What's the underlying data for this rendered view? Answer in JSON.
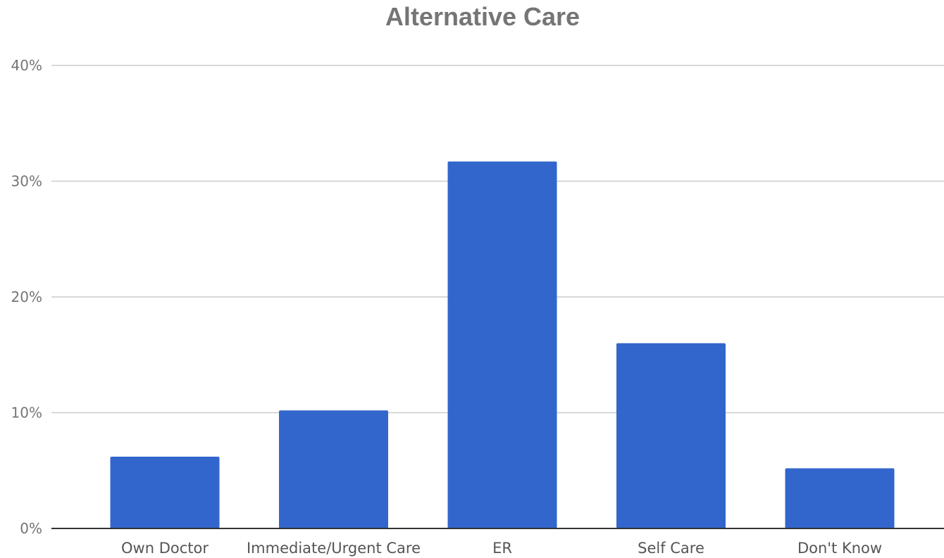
{
  "chart_data": {
    "type": "bar",
    "title": "Alternative Care",
    "xlabel": "",
    "ylabel": "",
    "categories": [
      "Own Doctor",
      "Immediate/Urgent Care",
      "ER",
      "Self Care",
      "Don't Know"
    ],
    "values": [
      6.2,
      10.2,
      31.7,
      16.0,
      5.2
    ],
    "value_unit": "percent",
    "ylim": [
      0,
      40
    ],
    "yticks": [
      0,
      10,
      20,
      30,
      40
    ],
    "ytick_labels": [
      "0%",
      "10%",
      "20%",
      "30%",
      "40%"
    ],
    "grid": true,
    "legend": "none",
    "bar_color": "#3366cc"
  }
}
